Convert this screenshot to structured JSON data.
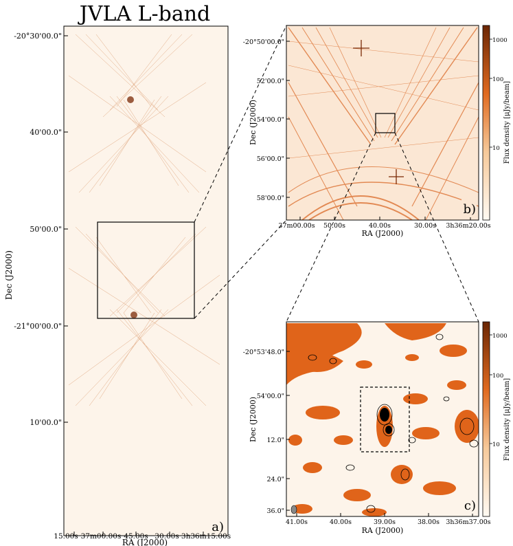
{
  "figure": {
    "title": "JVLA L-band",
    "colors": {
      "background": "#fdf4ea",
      "accent": "#e0641a",
      "dark": "#7a2a05",
      "frame": "#000000"
    },
    "panel_a": {
      "panel_label": "a)",
      "xlabel": "RA (J2000)",
      "ylabel": "Dec (J2000)",
      "yticks": [
        "-20°30'00.0\"",
        "40'00.0\"",
        "50'00.0\"",
        "-21°00'00.0\"",
        "10'00.0\""
      ],
      "xticks": [
        "15.00s",
        "37m00.00s",
        "45.00s",
        "30.00s",
        "3h36m15.00s"
      ]
    },
    "panel_b": {
      "panel_label": "b)",
      "xlabel": "RA (J2000)",
      "ylabel": "Dec (J2000)",
      "yticks": [
        "-20°50'00.0\"",
        "52'00.0\"",
        "54'00.0\"",
        "56'00.0\"",
        "58'00.0\""
      ],
      "xticks": [
        "37m00.00s",
        "50.00s",
        "40.00s",
        "30.00s",
        "3h36m20.00s"
      ],
      "colorbar_label": "Flux density [μJy/beam]",
      "colorbar_ticks": [
        "1000",
        "100",
        "10"
      ]
    },
    "panel_c": {
      "panel_label": "c)",
      "xlabel": "RA (J2000)",
      "ylabel": "Dec (J2000)",
      "yticks": [
        "-20°53'48.0\"",
        "54'00.0\"",
        "12.0\"",
        "24.0\"",
        "36.0\""
      ],
      "xticks": [
        "41.00s",
        "40.00s",
        "39.00s",
        "38.00s",
        "3h36m37.00s"
      ],
      "colorbar_label": "Flux density [μJy/beam]",
      "colorbar_ticks": [
        "1000",
        "100",
        "10"
      ]
    }
  }
}
